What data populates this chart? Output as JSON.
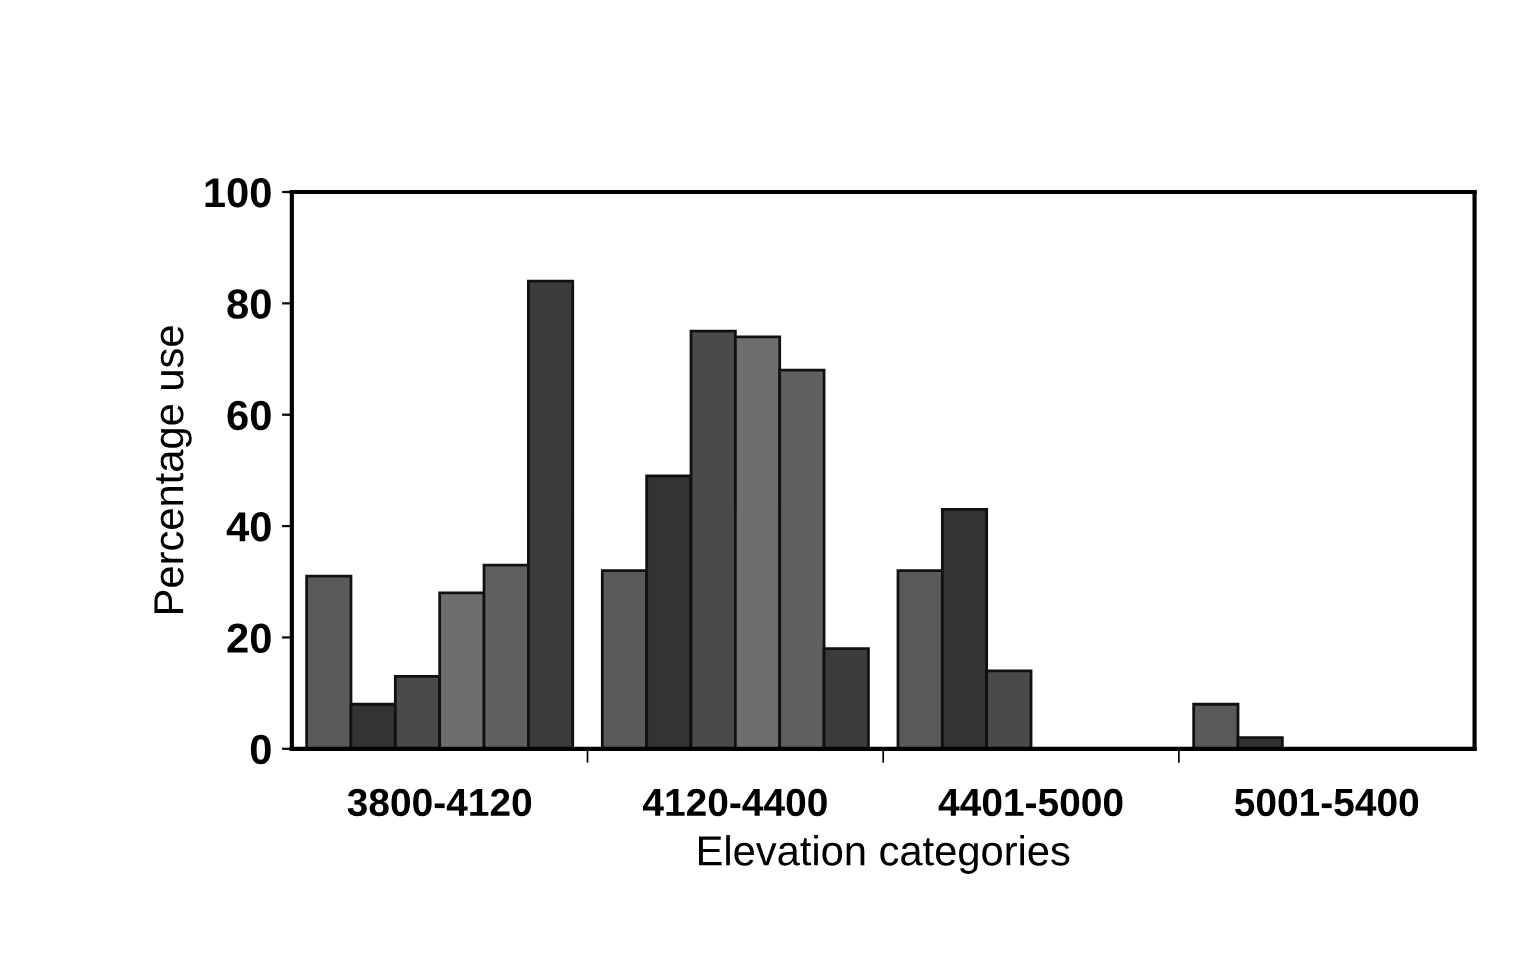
{
  "chart_data": {
    "type": "bar",
    "xlabel": "Elevation categories",
    "ylabel": "Percentage use",
    "categories": [
      "3800-4120",
      "4120-4400",
      "4401-5000",
      "5001-5400"
    ],
    "series": [
      {
        "color": "#5a5a5a",
        "values": [
          31,
          32,
          32,
          8
        ]
      },
      {
        "color": "#333333",
        "values": [
          8,
          49,
          43,
          2
        ]
      },
      {
        "color": "#4a4a4a",
        "values": [
          13,
          75,
          14,
          0
        ]
      },
      {
        "color": "#6e6e6e",
        "values": [
          28,
          74,
          0,
          0
        ]
      },
      {
        "color": "#606060",
        "values": [
          33,
          68,
          0,
          0
        ]
      },
      {
        "color": "#3c3c3c",
        "values": [
          84,
          18,
          0,
          0
        ]
      }
    ],
    "ylim": [
      0,
      100
    ],
    "yticks": [
      0,
      20,
      40,
      60,
      80,
      100
    ],
    "grid": false,
    "legend": false
  }
}
